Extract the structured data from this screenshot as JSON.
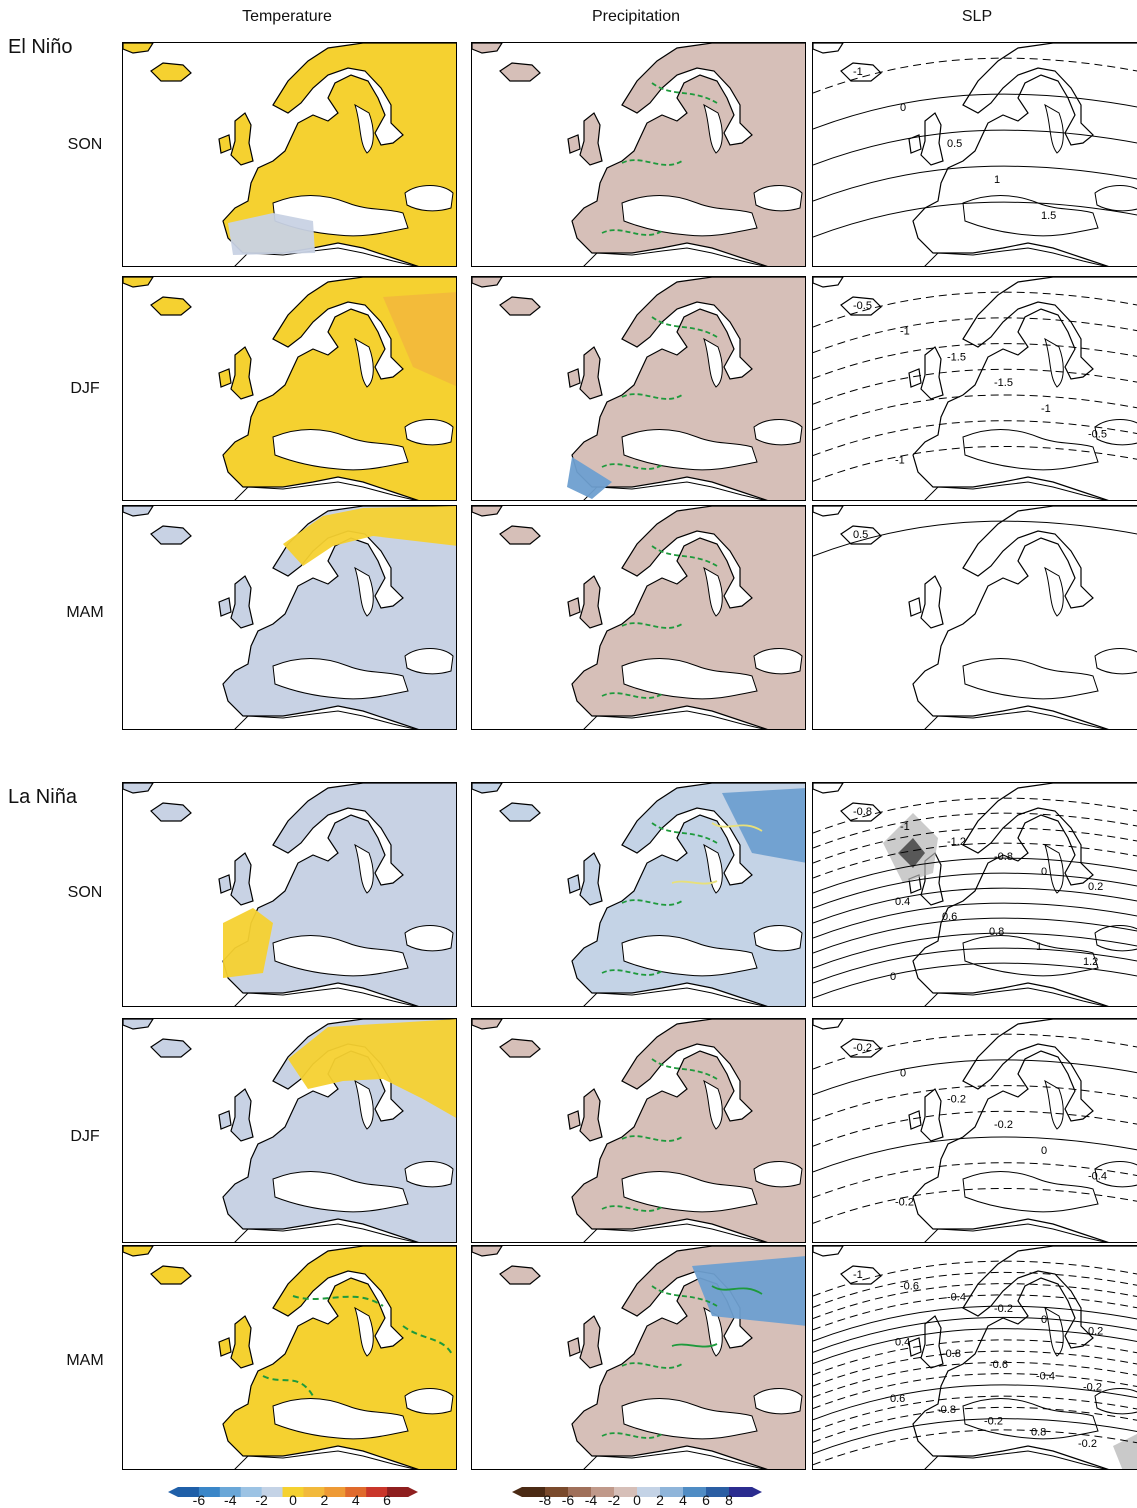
{
  "columns": [
    "Temperature",
    "Precipitation",
    "SLP"
  ],
  "groups": [
    {
      "label": "El Niño",
      "rows": [
        "SON",
        "DJF",
        "MAM"
      ]
    },
    {
      "label": "La Niña",
      "rows": [
        "SON",
        "DJF",
        "MAM"
      ]
    }
  ],
  "colorbars": {
    "temperature": {
      "ticks": [
        "-6",
        "-4",
        "-2",
        "0",
        "2",
        "4",
        "6"
      ],
      "colors": [
        "#1f5fa8",
        "#3a86c8",
        "#6aa7d8",
        "#9cc3e4",
        "#c4d3e6",
        "#f5d130",
        "#f2b93b",
        "#ee9a35",
        "#e06a2c",
        "#c9362a",
        "#8f1f1f"
      ]
    },
    "precipitation": {
      "ticks": [
        "-8",
        "-6",
        "-4",
        "-2",
        "0",
        "2",
        "4",
        "6",
        "8"
      ],
      "colors": [
        "#4b2a14",
        "#7a4a2c",
        "#a0705a",
        "#c0998a",
        "#d6bfb8",
        "#c4d3e6",
        "#8fb5da",
        "#4f8cc4",
        "#2a5ea3",
        "#2b2c8f"
      ]
    }
  },
  "slp_labels": {
    "elnino_son": [
      "-1",
      "0",
      "0.5",
      "1",
      "1.5"
    ],
    "elnino_djf": [
      "-0.5",
      "-1",
      "-1.5",
      "-1.5",
      "-1",
      "-0.5",
      "-1"
    ],
    "elnino_mam": [
      "0.5"
    ],
    "lanina_son": [
      "-0.8",
      "-1",
      "-1.2",
      "-0.8",
      "0",
      "0.2",
      "0.4",
      "0.6",
      "0.8",
      "1",
      "1.2",
      "0"
    ],
    "lanina_djf": [
      "-0.2",
      "0",
      "-0.2",
      "-0.2",
      "0",
      "-0.4",
      "-0.2"
    ],
    "lanina_mam": [
      "-1",
      "-0.6",
      "-0.4",
      "-0.2",
      "0",
      "0.2",
      "0.4",
      "-0.8",
      "-0.6",
      "-0.4",
      "-0.2",
      "0.6",
      "-0.8",
      "-0.2",
      "0.8",
      "-0.2"
    ]
  },
  "fill_colors": {
    "warm": "#f5d130",
    "warm_strong": "#f2b93b",
    "cool": "#c8d2e4",
    "dry": "#d6bfb8",
    "wet": "#c4d3e6",
    "wet_strong": "#6e9fd0",
    "sig_green": "#1e9a3c",
    "sig_yellow": "#e8e07a"
  }
}
